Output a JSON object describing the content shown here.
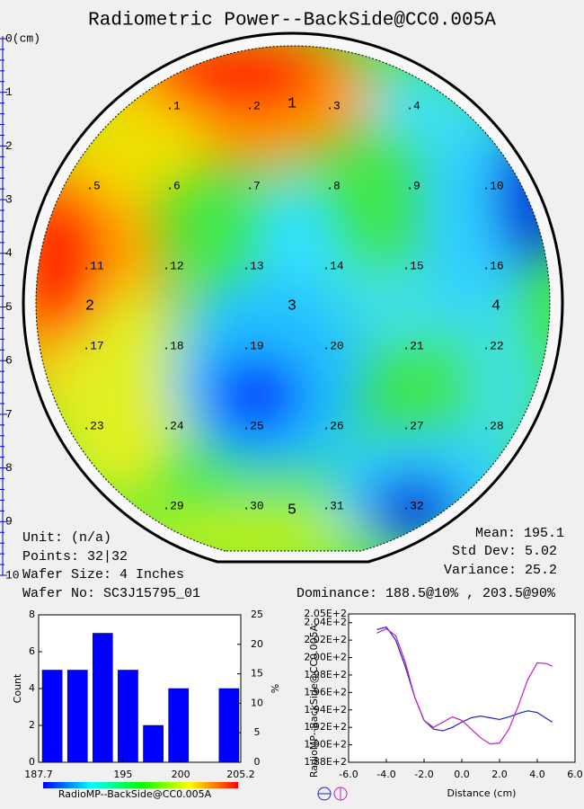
{
  "title": "Radiometric Power--BackSide@CC0.005A",
  "ruler": [
    "0(cm)",
    "1",
    "2",
    "3",
    "4",
    "5",
    "6",
    "7",
    "8",
    "9",
    "10"
  ],
  "wafer": {
    "points": [
      ".1",
      ".2",
      ".3",
      ".4",
      ".5",
      ".6",
      ".7",
      ".8",
      ".9",
      ".10",
      ".11",
      ".12",
      ".13",
      ".14",
      ".15",
      ".16",
      ".17",
      ".18",
      ".19",
      ".20",
      ".21",
      ".22",
      ".23",
      ".24",
      ".25",
      ".26",
      ".27",
      ".28",
      ".29",
      ".30",
      ".31",
      ".32"
    ],
    "zones": [
      "1",
      "2",
      "3",
      "4",
      "5"
    ]
  },
  "stats": {
    "unit": "Unit: (n/a)",
    "points": "Points: 32|32",
    "wafer_size": "Wafer Size: 4 Inches",
    "wafer_no": "Wafer No: SC3J15795_01",
    "mean": "Mean: 195.1",
    "std_dev": "Std Dev: 5.02",
    "variance": "Variance: 25.2",
    "dominance": "Dominance: 188.5@10% , 203.5@90%"
  },
  "chart_data": [
    {
      "type": "histogram",
      "x_label": "RadioMP--BackSide@CC0.005A",
      "y_label": "Count",
      "y2_label": "%",
      "color": "#0000ff",
      "bins": [
        187.7,
        189.89,
        192.08,
        194.26,
        196.45,
        198.64,
        200.83,
        203.01,
        205.2
      ],
      "values": [
        5,
        5,
        7,
        5,
        2,
        4,
        0,
        4
      ],
      "xlim": [
        187.7,
        205.2
      ],
      "xticks": [
        187.7,
        195,
        200,
        205.2
      ],
      "ylim": [
        0,
        8
      ],
      "yticks": [
        0,
        2,
        4,
        6,
        8
      ],
      "y2lim": [
        0,
        25
      ],
      "y2ticks": [
        0,
        5,
        10,
        15,
        20,
        25
      ]
    },
    {
      "type": "line",
      "x_label": "Distance (cm)",
      "y_label": "RadioMP--BackSide@CC0.005A",
      "x": [
        -4.5,
        -4.0,
        -3.5,
        -3.0,
        -2.5,
        -2.0,
        -1.5,
        -1.0,
        -0.5,
        0,
        0.5,
        1.0,
        1.5,
        2.0,
        2.5,
        3.0,
        3.5,
        4.0,
        4.5,
        4.8
      ],
      "series": [
        {
          "color": "#2020c0",
          "values": [
            203.2,
            203.5,
            202.0,
            199.0,
            195.5,
            192.8,
            191.8,
            191.6,
            192.0,
            192.6,
            193.1,
            193.3,
            193.1,
            192.9,
            193.2,
            193.6,
            193.9,
            193.7,
            193.0,
            192.6
          ]
        },
        {
          "color": "#c020c0",
          "values": [
            202.8,
            203.3,
            202.5,
            199.5,
            195.5,
            192.8,
            192.0,
            192.6,
            193.2,
            192.8,
            191.8,
            190.8,
            190.1,
            190.2,
            191.8,
            194.5,
            197.5,
            199.4,
            199.3,
            199.0
          ]
        }
      ],
      "xlim": [
        -6,
        6
      ],
      "xticks": [
        {
          "value": -6,
          "label": "-6.0"
        },
        {
          "value": -4,
          "label": "-4.0"
        },
        {
          "value": -2,
          "label": "-2.0"
        },
        {
          "value": 0,
          "label": "0.0"
        },
        {
          "value": 2,
          "label": "2.0"
        },
        {
          "value": 4,
          "label": "4.0"
        },
        {
          "value": 6,
          "label": "6.0"
        }
      ],
      "ylim": [
        188,
        205
      ],
      "yticks": [
        {
          "value": 188,
          "label": "1.88E+2"
        },
        {
          "value": 190,
          "label": "1.90E+2"
        },
        {
          "value": 192,
          "label": "1.92E+2"
        },
        {
          "value": 194,
          "label": "1.94E+2"
        },
        {
          "value": 196,
          "label": "1.96E+2"
        },
        {
          "value": 198,
          "label": "1.98E+2"
        },
        {
          "value": 200,
          "label": "2.00E+2"
        },
        {
          "value": 202,
          "label": "2.02E+2"
        },
        {
          "value": 204,
          "label": "2.04E+2"
        },
        {
          "value": 205,
          "label": "2.05E+2"
        }
      ]
    }
  ]
}
